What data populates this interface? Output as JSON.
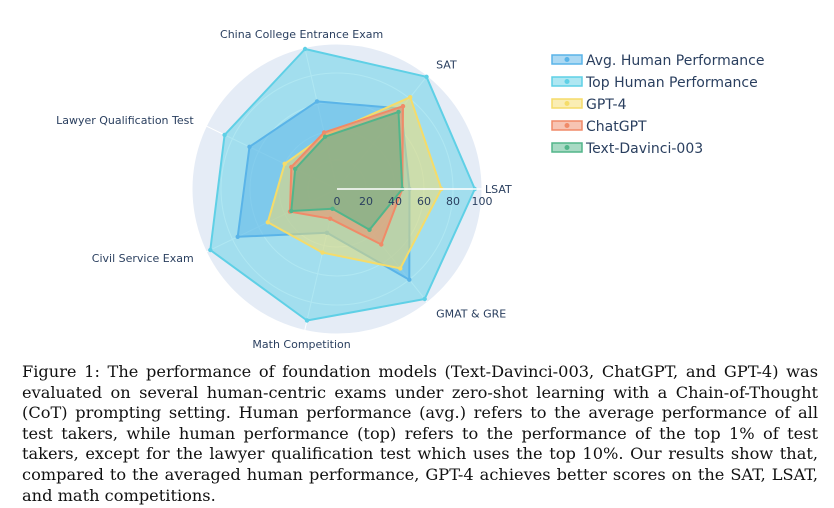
{
  "chart_data": {
    "type": "radar",
    "axes": [
      "LSAT",
      "SAT",
      "China College Entrance Exam",
      "Lawyer Qualification Test",
      "Civil Service Exam",
      "Math Competition",
      "GMAT & GRE"
    ],
    "radial_range": [
      0,
      100
    ],
    "radial_ticks": [
      0,
      20,
      40,
      60,
      80,
      100
    ],
    "series": [
      {
        "name": "Avg. Human Performance",
        "color": "#5ab4e8",
        "values": [
          50,
          71,
          62,
          67,
          76,
          31,
          80
        ]
      },
      {
        "name": "Top Human Performance",
        "color": "#5fd0e6",
        "values": [
          95,
          99,
          99,
          86,
          97,
          93,
          97
        ]
      },
      {
        "name": "GPT-4",
        "color": "#f5dc6a",
        "values": [
          72,
          81,
          38,
          40,
          53,
          45,
          70
        ]
      },
      {
        "name": "ChatGPT",
        "color": "#f08a68",
        "values": [
          45,
          73,
          40,
          35,
          36,
          21,
          49
        ]
      },
      {
        "name": "Text-Davinci-003",
        "color": "#52b58a",
        "values": [
          45,
          68,
          37,
          32,
          35,
          14,
          36
        ]
      }
    ]
  },
  "caption": "Figure 1: The performance of foundation models (Text-Davinci-003, ChatGPT, and GPT-4) was evaluated on several human-centric exams under zero-shot learning with a Chain-of-Thought (CoT) prompting setting. Human performance (avg.) refers to the average performance of all test takers, while human performance (top) refers to the performance of the top 1% of test takers, except for the lawyer qualification test which uses the top 10%. Our results show that, compared to the averaged human performance, GPT-4 achieves better scores on the SAT, LSAT, and math competitions."
}
